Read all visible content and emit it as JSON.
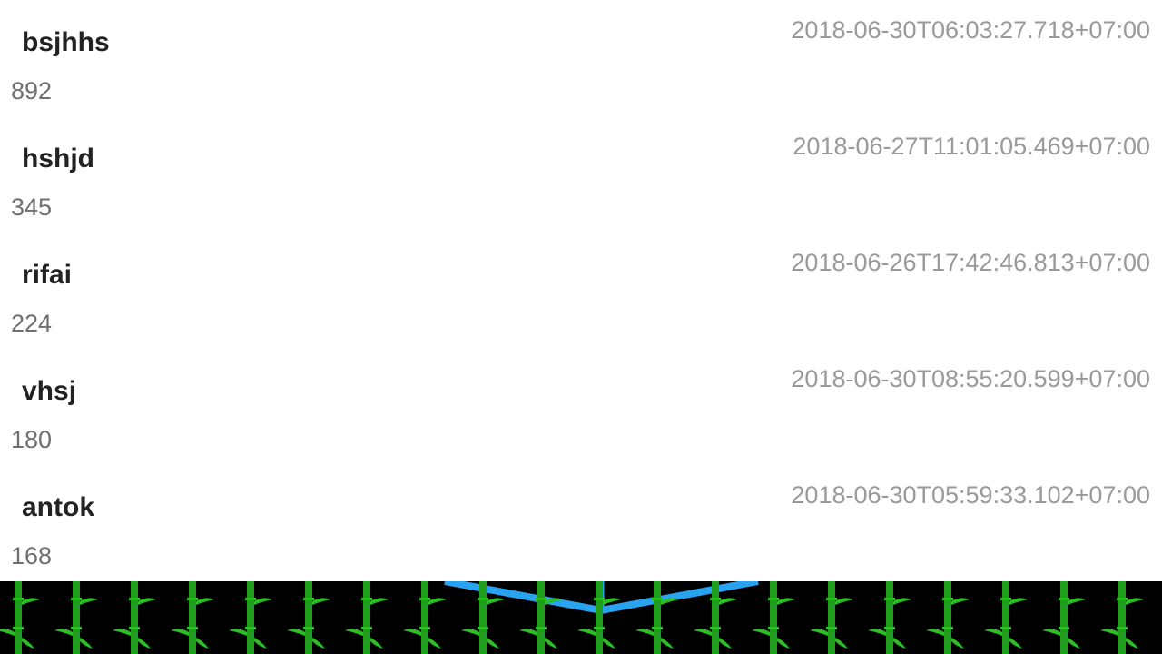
{
  "leaderboard": {
    "entries": [
      {
        "name": "bsjhhs",
        "score": "892",
        "timestamp": "2018-06-30T06:03:27.718+07:00"
      },
      {
        "name": "hshjd",
        "score": "345",
        "timestamp": "2018-06-27T11:01:05.469+07:00"
      },
      {
        "name": "rifai",
        "score": "224",
        "timestamp": "2018-06-26T17:42:46.813+07:00"
      },
      {
        "name": "vhsj",
        "score": "180",
        "timestamp": "2018-06-30T08:55:20.599+07:00"
      },
      {
        "name": "antok",
        "score": "168",
        "timestamp": "2018-06-30T05:59:33.102+07:00"
      }
    ]
  },
  "footer": {
    "background_color": "#000000",
    "bamboo_color": "#1e9e1a",
    "bamboo_leaf_color": "#2bbf23",
    "accent_line_color": "#29a3f0"
  }
}
